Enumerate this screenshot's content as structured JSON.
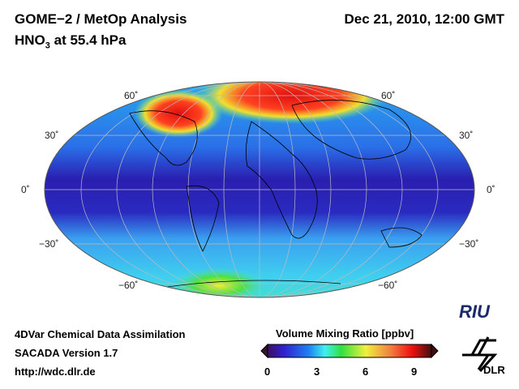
{
  "header": {
    "title": "GOME−2 / MetOp Analysis",
    "species_main": "HNO",
    "species_sub": "3",
    "species_rest": " at 55.4 hPa",
    "datetime": "Dec 21, 2010, 12:00 GMT"
  },
  "map": {
    "projection": "Hammer-Aitoff (global)",
    "lat_labels": {
      "n60": "60˚",
      "n30": "30˚",
      "eq": "0˚",
      "s30": "−30˚",
      "s60": "−60˚"
    }
  },
  "footer": {
    "line1": "4DVar Chemical Data Assimilation",
    "line2": "SACADA Version 1.7",
    "line3": "http://wdc.dlr.de"
  },
  "colorbar": {
    "title": "Volume Mixing Ratio [ppbv]",
    "ticks": [
      "0",
      "3",
      "6",
      "9"
    ],
    "range": [
      0,
      10
    ]
  },
  "logos": {
    "riu": "RIU",
    "dlr": "DLR"
  },
  "colors": {
    "low": "#2a1ea8",
    "mid": "#30e0f0",
    "high": "#ff1010",
    "max": "#4a1010"
  }
}
